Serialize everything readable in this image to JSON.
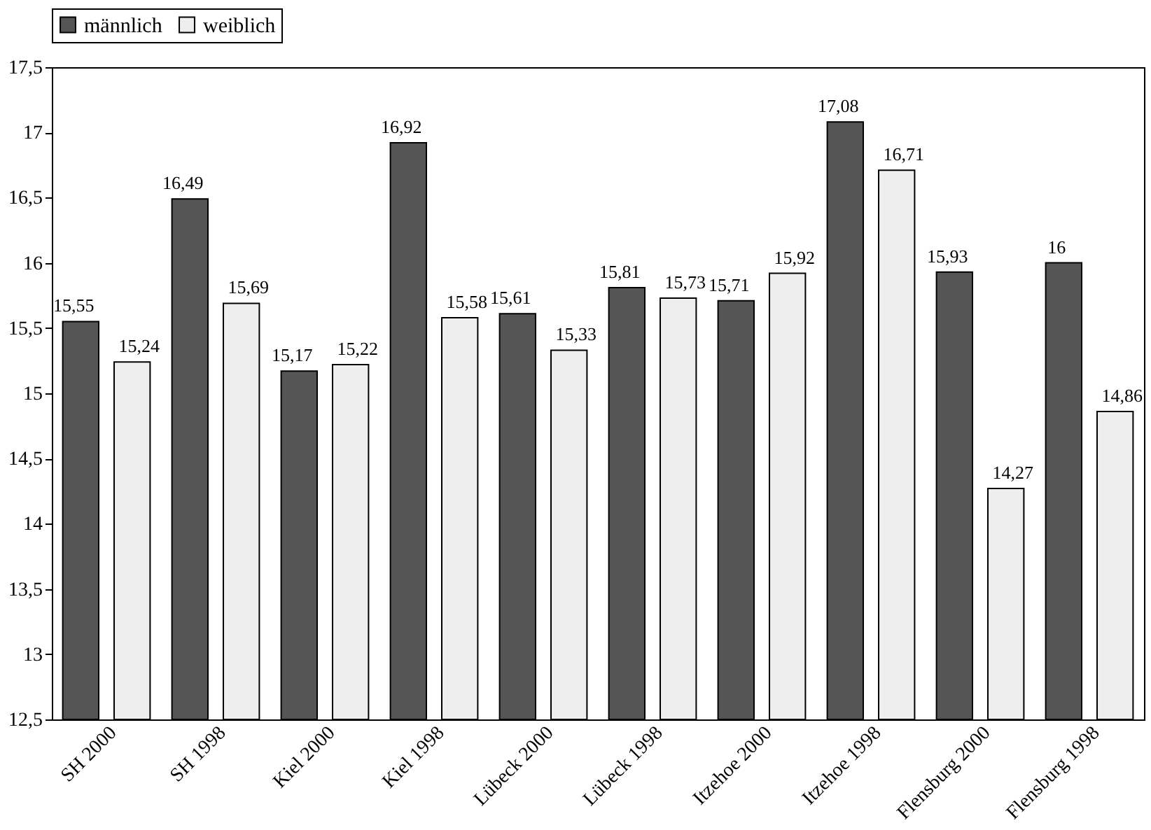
{
  "chart_data": {
    "type": "bar",
    "categories": [
      "SH 2000",
      "SH 1998",
      "Kiel 2000",
      "Kiel 1998",
      "Lübeck 2000",
      "Lübeck 1998",
      "Itzehoe 2000",
      "Itzehoe 1998",
      "Flensburg 2000",
      "Flensburg 1998"
    ],
    "series": [
      {
        "name": "männlich",
        "color": "#555555",
        "values": [
          15.55,
          16.49,
          15.17,
          16.92,
          15.61,
          15.81,
          15.71,
          17.08,
          15.93,
          16
        ],
        "value_labels": [
          "15,55",
          "16,49",
          "15,17",
          "16,92",
          "15,61",
          "15,81",
          "15,71",
          "17,08",
          "15,93",
          "16"
        ]
      },
      {
        "name": "weiblich",
        "color": "#eeeeee",
        "values": [
          15.24,
          15.69,
          15.22,
          15.58,
          15.33,
          15.73,
          15.92,
          16.71,
          14.27,
          14.86
        ],
        "value_labels": [
          "15,24",
          "15,69",
          "15,22",
          "15,58",
          "15,33",
          "15,73",
          "15,92",
          "16,71",
          "14,27",
          "14,86"
        ]
      }
    ],
    "ylim": [
      12.5,
      17.5
    ],
    "yticks": [
      {
        "value": 12.5,
        "label": "12,5"
      },
      13,
      {
        "value": 13.5,
        "label": "13,5"
      },
      14,
      {
        "value": 14.5,
        "label": "14,5"
      },
      15,
      {
        "value": 15.5,
        "label": "15,5"
      },
      16,
      {
        "value": 16.5,
        "label": "16,5"
      },
      17,
      {
        "value": 17.5,
        "label": "17,5"
      }
    ],
    "legend": "top",
    "grid": false
  }
}
